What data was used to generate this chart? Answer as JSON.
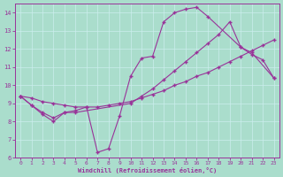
{
  "bg_color": "#aaddcc",
  "line_color": "#993399",
  "grid_color": "#cceeee",
  "xlabel": "Windchill (Refroidissement éolien,°C)",
  "xlim": [
    -0.5,
    23.5
  ],
  "ylim": [
    6,
    14.5
  ],
  "xticks": [
    0,
    1,
    2,
    3,
    4,
    5,
    6,
    7,
    8,
    9,
    10,
    11,
    12,
    13,
    14,
    15,
    16,
    17,
    18,
    19,
    20,
    21,
    22,
    23
  ],
  "yticks": [
    6,
    7,
    8,
    9,
    10,
    11,
    12,
    13,
    14
  ],
  "line_zigzag_x": [
    0,
    1,
    2,
    3,
    4,
    5,
    6,
    7,
    8,
    9,
    10,
    11,
    12,
    13,
    14,
    15,
    16,
    17,
    20,
    21,
    23
  ],
  "line_zigzag_y": [
    9.4,
    8.9,
    8.4,
    8.0,
    8.5,
    8.6,
    8.8,
    6.3,
    6.5,
    8.3,
    10.5,
    11.5,
    11.6,
    13.5,
    14.0,
    14.2,
    14.3,
    13.8,
    12.1,
    11.8,
    10.4
  ],
  "line_diag_x": [
    0,
    1,
    2,
    3,
    4,
    5,
    6,
    7,
    8,
    9,
    10,
    11,
    12,
    13,
    14,
    15,
    16,
    17,
    18,
    19,
    20,
    21,
    22,
    23
  ],
  "line_diag_y": [
    9.4,
    9.3,
    9.1,
    9.0,
    8.9,
    8.8,
    8.8,
    8.8,
    8.9,
    9.0,
    9.1,
    9.3,
    9.5,
    9.7,
    10.0,
    10.2,
    10.5,
    10.7,
    11.0,
    11.3,
    11.6,
    11.9,
    12.2,
    12.5
  ],
  "line_mid_x": [
    0,
    1,
    2,
    3,
    4,
    5,
    10,
    11,
    12,
    13,
    14,
    15,
    16,
    17,
    18,
    19,
    20,
    21,
    22,
    23
  ],
  "line_mid_y": [
    9.4,
    8.9,
    8.5,
    8.2,
    8.5,
    8.5,
    9.0,
    9.4,
    9.8,
    10.3,
    10.8,
    11.3,
    11.8,
    12.3,
    12.8,
    13.5,
    12.1,
    11.7,
    11.4,
    10.4
  ]
}
